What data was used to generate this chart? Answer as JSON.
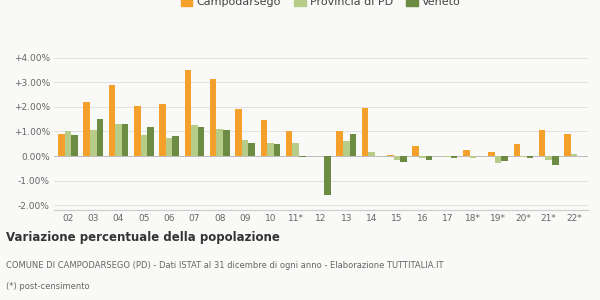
{
  "years": [
    "02",
    "03",
    "04",
    "05",
    "06",
    "07",
    "08",
    "09",
    "10",
    "11*",
    "12",
    "13",
    "14",
    "15",
    "16",
    "17",
    "18*",
    "19*",
    "20*",
    "21*",
    "22*"
  ],
  "campodarsego": [
    0.9,
    2.2,
    2.9,
    2.05,
    2.1,
    3.5,
    3.15,
    1.9,
    1.45,
    1.0,
    null,
    1.0,
    1.95,
    0.05,
    0.4,
    null,
    0.25,
    0.15,
    0.5,
    1.05,
    0.9
  ],
  "provincia_pd": [
    1.0,
    1.05,
    1.3,
    0.85,
    0.75,
    1.25,
    1.1,
    0.65,
    0.55,
    0.55,
    null,
    0.6,
    0.15,
    -0.15,
    -0.1,
    -0.05,
    -0.1,
    -0.3,
    -0.05,
    -0.15,
    0.1
  ],
  "veneto": [
    0.85,
    1.5,
    1.3,
    1.2,
    0.8,
    1.2,
    1.05,
    0.55,
    0.5,
    -0.05,
    -1.6,
    0.9,
    null,
    -0.25,
    -0.15,
    -0.1,
    null,
    -0.2,
    -0.1,
    -0.35,
    null
  ],
  "color_campodarsego": "#f5a02a",
  "color_provincia": "#b8cc8a",
  "color_veneto": "#6b8c42",
  "title": "Variazione percentuale della popolazione",
  "subtitle1": "COMUNE DI CAMPODARSEGO (PD) - Dati ISTAT al 31 dicembre di ogni anno - Elaborazione TUTTITALIA.IT",
  "subtitle2": "(*) post-censimento",
  "ylim": [
    -2.2,
    4.4
  ],
  "yticks": [
    -2.0,
    -1.0,
    0.0,
    1.0,
    2.0,
    3.0,
    4.0
  ],
  "ytick_labels": [
    "-2.00%",
    "-1.00%",
    "0.00%",
    "+1.00%",
    "+2.00%",
    "+3.00%",
    "+4.00%"
  ],
  "legend_labels": [
    "Campodarsego",
    "Provincia di PD",
    "Veneto"
  ],
  "bg_color": "#f9f9f7"
}
